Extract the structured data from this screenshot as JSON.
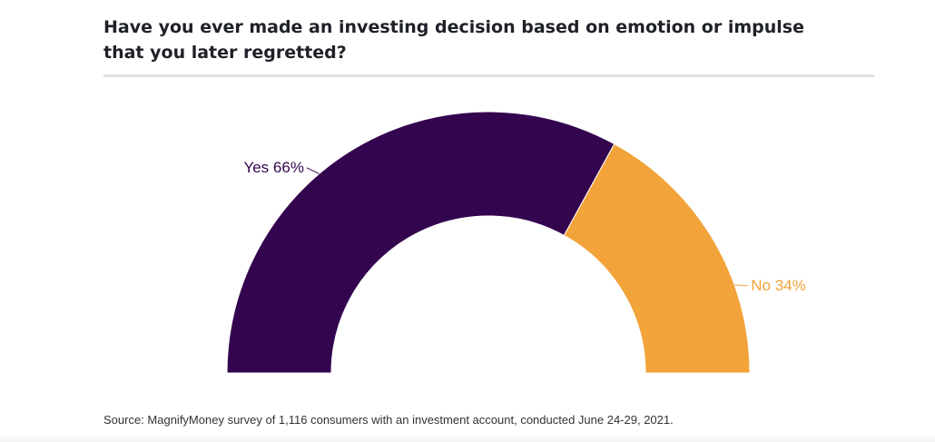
{
  "chart_data": {
    "type": "pie",
    "variant": "semicircle-donut",
    "title": "Have you ever made an investing decision based on emotion or impulse that you later regretted?",
    "slices": [
      {
        "label": "Yes",
        "value": 66,
        "display": "Yes 66%",
        "color": "#34054f"
      },
      {
        "label": "No",
        "value": 34,
        "display": "No 34%",
        "color": "#f2a33a"
      }
    ],
    "source": "Source: MagnifyMoney survey of 1,116 consumers with an investment account, conducted June 24-29, 2021."
  }
}
